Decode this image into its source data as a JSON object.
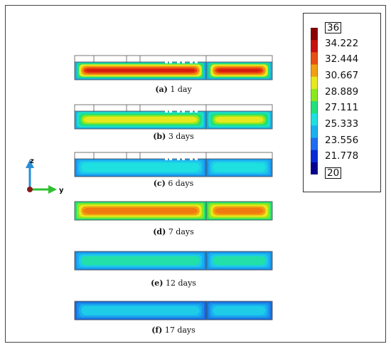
{
  "panels": [
    {
      "id": "a",
      "tag": "(a)",
      "label": "1 day",
      "mode": "hot",
      "days": 1
    },
    {
      "id": "b",
      "tag": "(b)",
      "label": "3 days",
      "mode": "warm",
      "days": 3
    },
    {
      "id": "c",
      "tag": "(c)",
      "label": "6 days",
      "mode": "cool",
      "days": 6
    },
    {
      "id": "d",
      "tag": "(d)",
      "label": "7 days",
      "mode": "yellow",
      "days": 7
    },
    {
      "id": "e",
      "tag": "(e)",
      "label": "12 days",
      "mode": "cyan",
      "days": 12
    },
    {
      "id": "f",
      "tag": "(f)",
      "label": "17 days",
      "mode": "blue",
      "days": 17
    }
  ],
  "legend": {
    "max": "36",
    "min": "20",
    "ticks": [
      "34.222",
      "32.444",
      "30.667",
      "28.889",
      "27.111",
      "25.333",
      "23.556",
      "21.778"
    ],
    "colors": [
      "#08008f",
      "#0a2ad8",
      "#1e6ef0",
      "#1ab0f0",
      "#1ee0e0",
      "#22e07a",
      "#8ce81e",
      "#e8e81e",
      "#f0a010",
      "#e85010",
      "#c81010",
      "#8a0000"
    ]
  },
  "axes": {
    "z": "z",
    "y": "y"
  }
}
